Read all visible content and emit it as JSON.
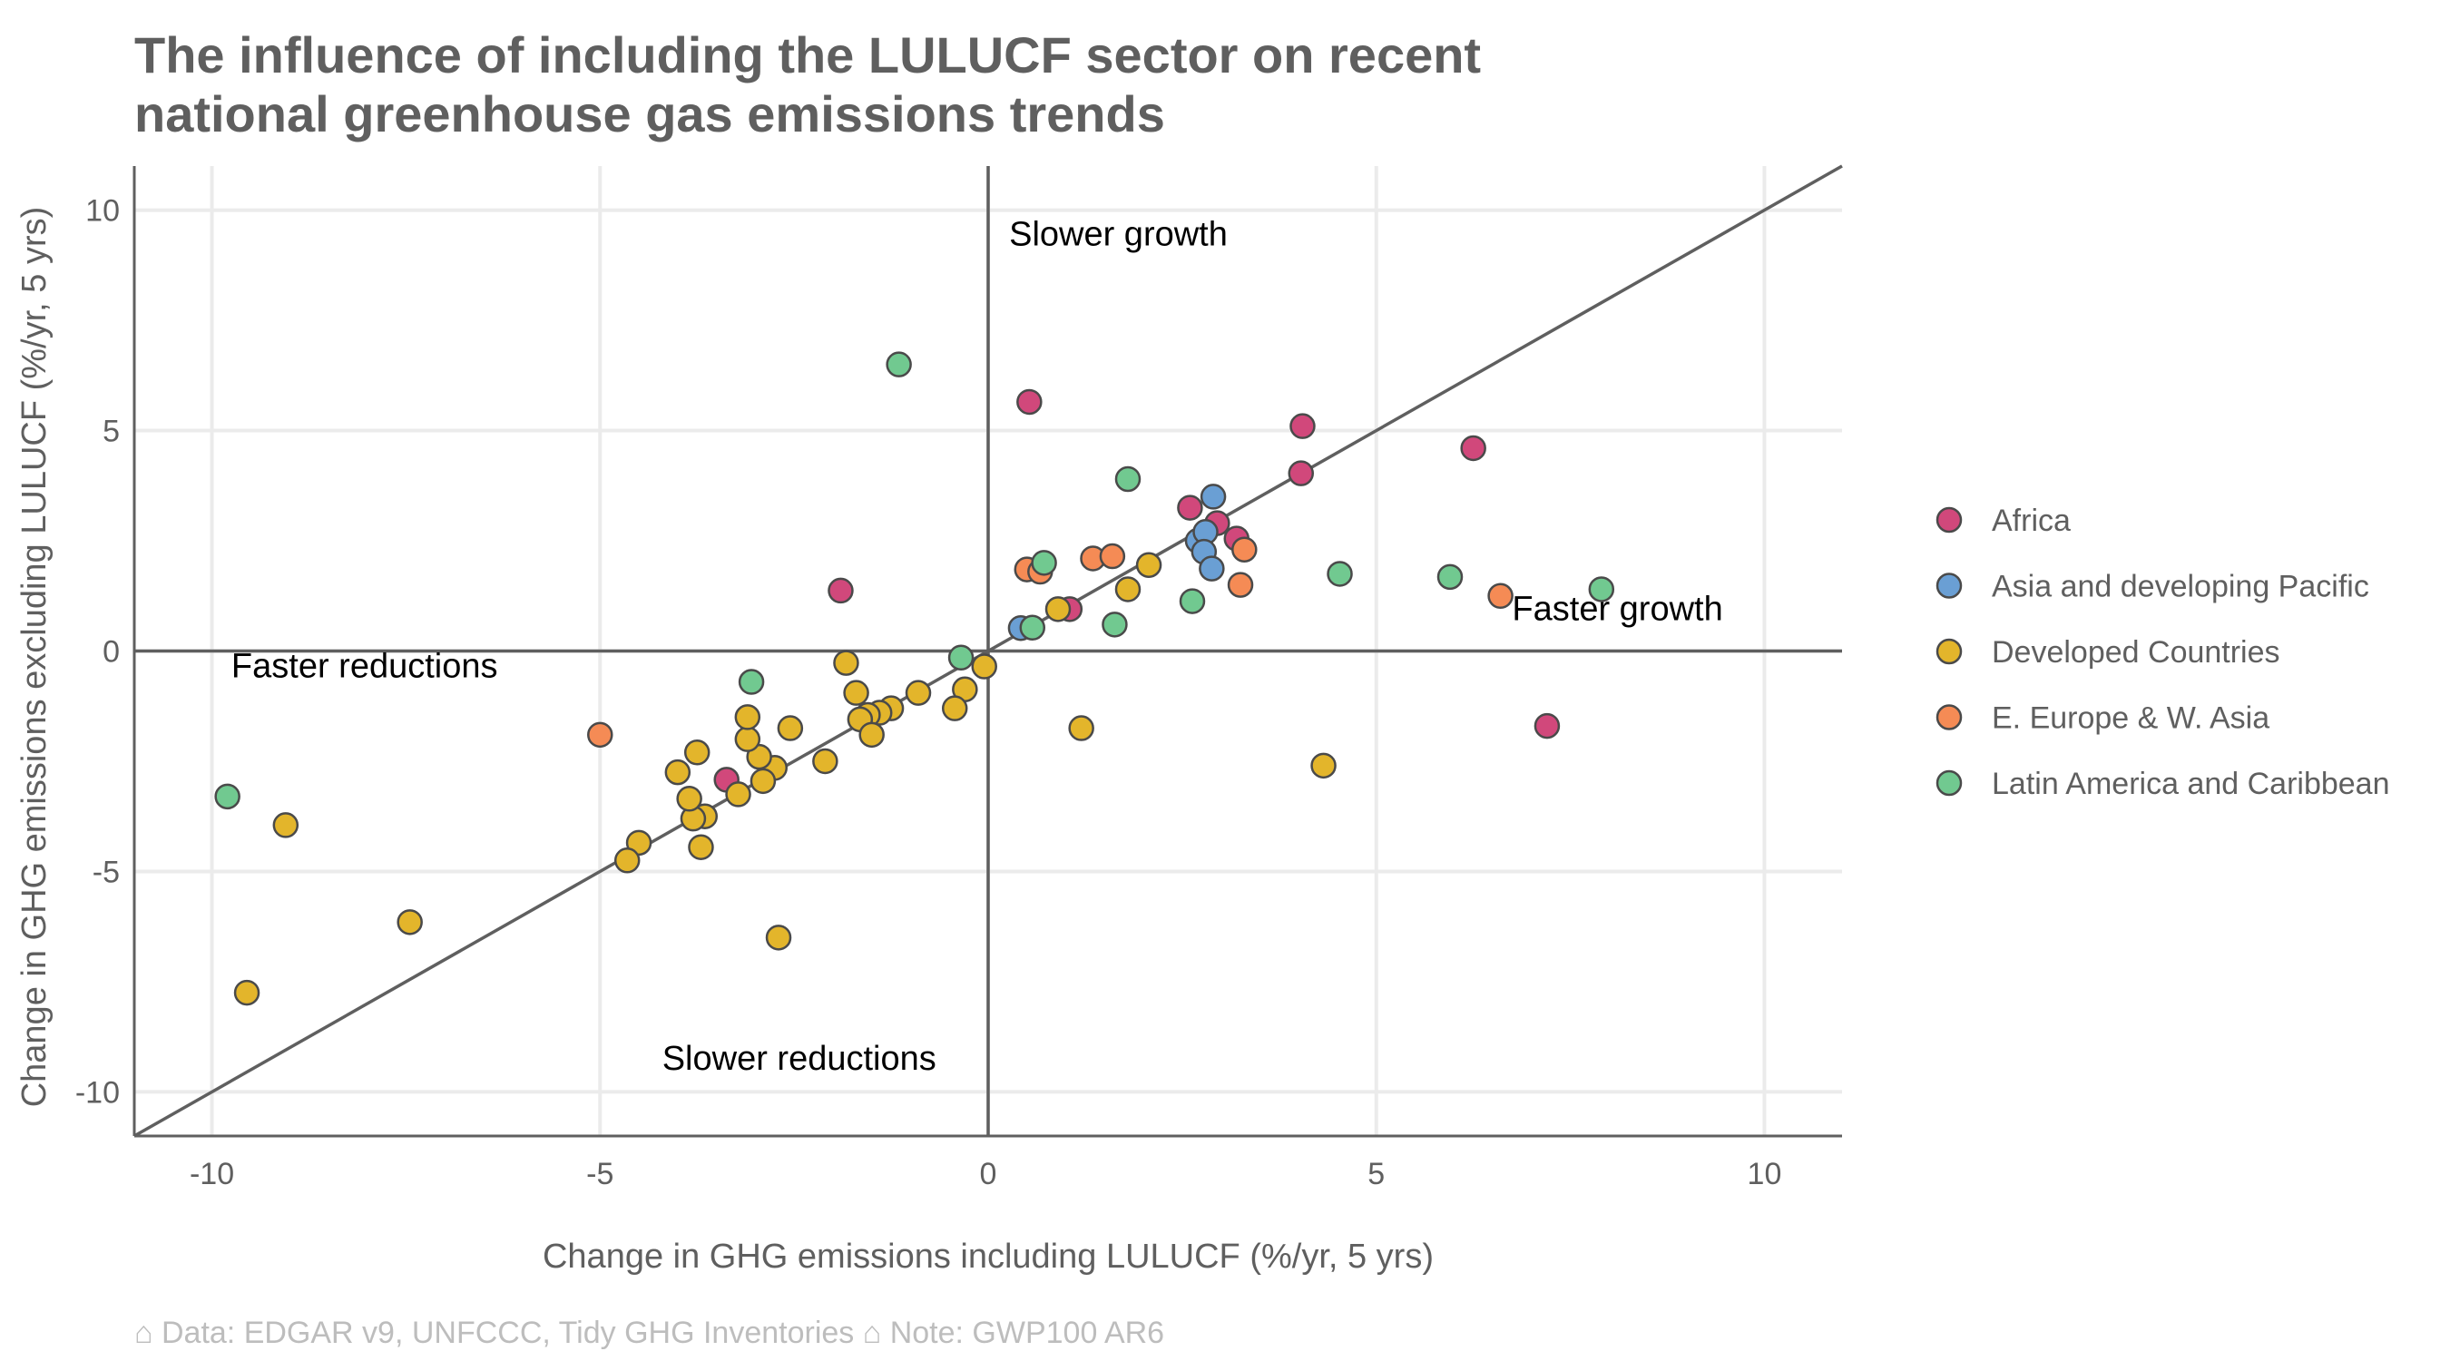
{
  "chart_data": {
    "type": "scatter",
    "title_lines": [
      "The influence of including the LULUCF sector on recent",
      "national greenhouse gas emissions trends"
    ],
    "xlabel": "Change in GHG emissions including LULUCF (%/yr, 5 yrs)",
    "ylabel": "Change in GHG emissions excluding LULUCF (%/yr, 5 yrs)",
    "xlim": [
      -11,
      11
    ],
    "ylim": [
      -11,
      11
    ],
    "x_ticks": [
      -10,
      -5,
      0,
      5,
      10
    ],
    "y_ticks": [
      -10,
      -5,
      0,
      5,
      10
    ],
    "tick_labels": [
      "-10",
      "-5",
      "0",
      "5",
      "10"
    ],
    "grid": true,
    "legend_position": "right",
    "reference_lines": [
      "y = x",
      "x = 0",
      "y = 0"
    ],
    "annotations": [
      {
        "text": "Slower growth",
        "x": 0.27,
        "y": 9.2
      },
      {
        "text": "Faster growth",
        "x": 6.75,
        "y": 0.7
      },
      {
        "text": "Faster reductions",
        "x": -9.75,
        "y": -0.6
      },
      {
        "text": "Slower reductions",
        "x": -4.2,
        "y": -9.5
      }
    ],
    "caption": "⌂ Data: EDGAR v9, UNFCCC, Tidy GHG Inventories  ⌂ Note: GWP100 AR6",
    "series": [
      {
        "name": "Africa",
        "color": "#d1487b",
        "points": [
          [
            0.53,
            5.65
          ],
          [
            4.05,
            5.1
          ],
          [
            6.25,
            4.6
          ],
          [
            4.03,
            4.03
          ],
          [
            2.6,
            3.25
          ],
          [
            2.95,
            2.9
          ],
          [
            3.2,
            2.55
          ],
          [
            1.05,
            0.95
          ],
          [
            7.2,
            -1.7
          ],
          [
            -1.9,
            1.37
          ],
          [
            -3.37,
            -2.92
          ]
        ]
      },
      {
        "name": "Asia and developing Pacific",
        "color": "#6a9fd4",
        "points": [
          [
            2.9,
            3.5
          ],
          [
            2.7,
            2.5
          ],
          [
            2.8,
            2.7
          ],
          [
            2.78,
            2.25
          ],
          [
            2.88,
            1.87
          ],
          [
            0.42,
            0.52
          ]
        ]
      },
      {
        "name": "Developed Countries",
        "color": "#e3b52b",
        "points": [
          [
            2.07,
            1.95
          ],
          [
            1.8,
            1.4
          ],
          [
            0.9,
            0.95
          ],
          [
            1.2,
            -1.75
          ],
          [
            4.32,
            -2.6
          ],
          [
            -0.05,
            -0.35
          ],
          [
            -0.3,
            -0.87
          ],
          [
            -0.43,
            -1.3
          ],
          [
            -0.9,
            -0.95
          ],
          [
            -1.25,
            -1.3
          ],
          [
            -1.4,
            -1.4
          ],
          [
            -1.55,
            -1.45
          ],
          [
            -1.65,
            -1.55
          ],
          [
            -1.7,
            -0.95
          ],
          [
            -1.83,
            -0.27
          ],
          [
            -1.5,
            -1.9
          ],
          [
            -2.1,
            -2.5
          ],
          [
            -2.55,
            -1.75
          ],
          [
            -2.75,
            -2.65
          ],
          [
            -2.9,
            -2.95
          ],
          [
            -2.95,
            -2.4
          ],
          [
            -3.1,
            -2.0
          ],
          [
            -3.1,
            -1.5
          ],
          [
            -3.22,
            -3.25
          ],
          [
            -3.65,
            -3.75
          ],
          [
            -3.7,
            -4.45
          ],
          [
            -3.75,
            -2.3
          ],
          [
            -3.8,
            -3.8
          ],
          [
            -3.85,
            -3.35
          ],
          [
            -4.0,
            -2.75
          ],
          [
            -4.5,
            -4.35
          ],
          [
            -4.65,
            -4.75
          ],
          [
            -2.7,
            -6.5
          ],
          [
            -7.45,
            -6.15
          ],
          [
            -9.05,
            -3.95
          ],
          [
            -9.55,
            -7.75
          ]
        ]
      },
      {
        "name": "E. Europe & W. Asia",
        "color": "#f58b55",
        "points": [
          [
            0.5,
            1.85
          ],
          [
            0.67,
            1.8
          ],
          [
            1.35,
            2.1
          ],
          [
            1.6,
            2.15
          ],
          [
            3.3,
            2.3
          ],
          [
            3.25,
            1.5
          ],
          [
            6.6,
            1.25
          ],
          [
            -5.0,
            -1.9
          ]
        ]
      },
      {
        "name": "Latin America and Caribbean",
        "color": "#71c990",
        "points": [
          [
            -1.15,
            6.5
          ],
          [
            1.8,
            3.9
          ],
          [
            0.72,
            2.0
          ],
          [
            0.57,
            0.53
          ],
          [
            1.63,
            0.6
          ],
          [
            2.63,
            1.13
          ],
          [
            4.53,
            1.75
          ],
          [
            5.95,
            1.68
          ],
          [
            7.9,
            1.4
          ],
          [
            -0.35,
            -0.15
          ],
          [
            -3.05,
            -0.7
          ],
          [
            -9.8,
            -3.3
          ]
        ]
      }
    ]
  }
}
